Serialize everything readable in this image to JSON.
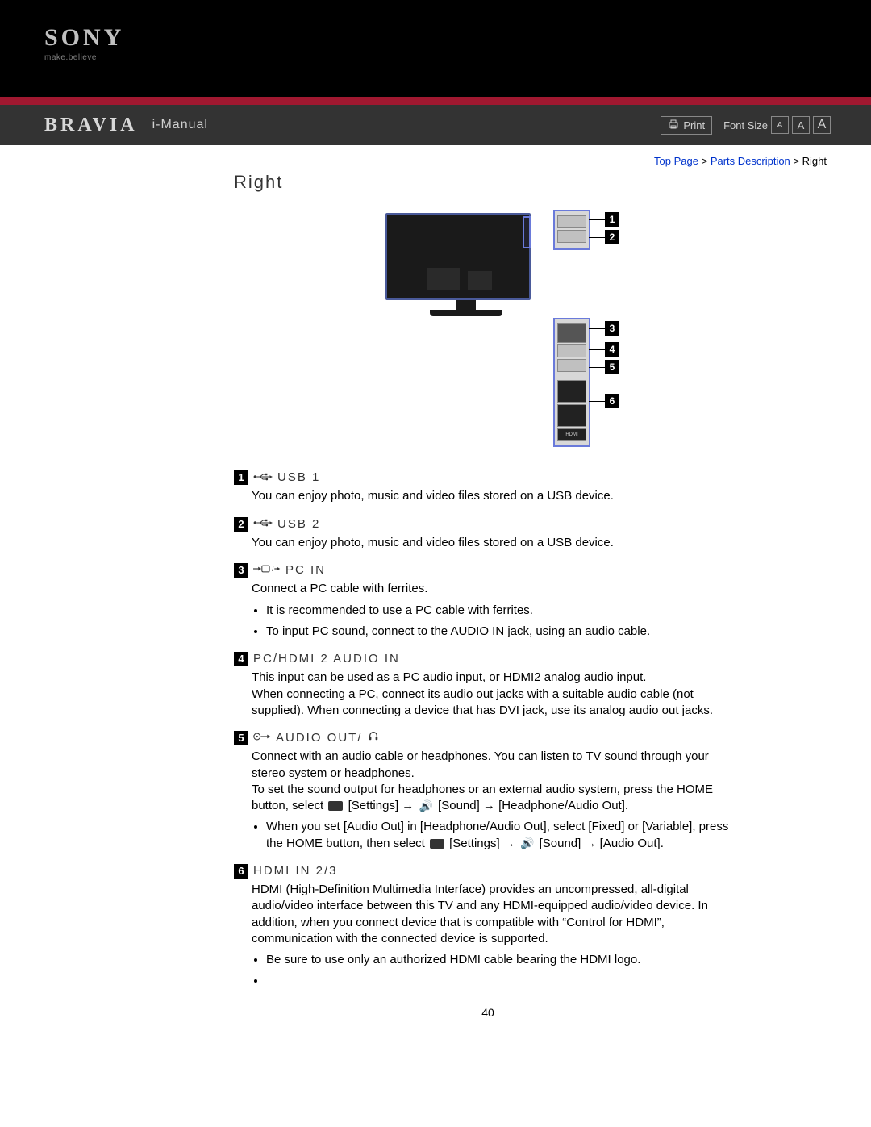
{
  "logo": {
    "brand": "SONY",
    "tagline": "make.believe"
  },
  "header": {
    "bravia": "BRAVIA",
    "imanual": "i-Manual",
    "print": "Print",
    "font_size_label": "Font Size",
    "a1": "A",
    "a2": "A",
    "a3": "A"
  },
  "breadcrumb": {
    "top": "Top Page",
    "mid": "Parts Description",
    "current": "Right",
    "sep": ">"
  },
  "title": "Right",
  "callouts": [
    "1",
    "2",
    "3",
    "4",
    "5",
    "6"
  ],
  "items": [
    {
      "num": "1",
      "icon": "usb",
      "title": "USB 1",
      "body": [
        "You can enjoy photo, music and video files stored on a USB device."
      ],
      "bullets": []
    },
    {
      "num": "2",
      "icon": "usb",
      "title": "USB 2",
      "body": [
        "You can enjoy photo, music and video files stored on a USB device."
      ],
      "bullets": []
    },
    {
      "num": "3",
      "icon": "pc",
      "title": "PC IN",
      "body": [
        "Connect a PC cable with ferrites."
      ],
      "bullets": [
        "It is recommended to use a PC cable with ferrites.",
        "To input PC sound, connect to the AUDIO IN jack, using an audio cable."
      ]
    },
    {
      "num": "4",
      "icon": "",
      "title": "PC/HDMI 2 AUDIO IN",
      "body": [
        "This input can be used as a PC audio input, or HDMI2 analog audio input.",
        "When connecting a PC, connect its audio out jacks with a suitable audio cable (not supplied). When connecting a device that has DVI jack, use its analog audio out jacks."
      ],
      "bullets": []
    },
    {
      "num": "5",
      "icon": "audioout",
      "title": "AUDIO OUT/",
      "title_suffix_icon": "headphone",
      "body_rich": true,
      "body": [
        "Connect with an audio cable or headphones. You can listen to TV sound through your stereo system or headphones."
      ],
      "body2_pre": "To set the sound output for headphones or an external audio system, press the HOME button, select ",
      "body2_settings": " [Settings] → ",
      "body2_sound": " [Sound] → [Headphone/Audio Out].",
      "bullets_rich": [
        {
          "pre": "When you set [Audio Out] in [Headphone/Audio Out], select [Fixed] or [Variable], press the HOME button, then select ",
          "mid1": " [Settings] → ",
          "mid2": " [Sound] → [Audio Out]."
        }
      ],
      "bullets": []
    },
    {
      "num": "6",
      "icon": "",
      "title": "HDMI IN 2/3",
      "body": [
        "HDMI (High-Definition Multimedia Interface) provides an uncompressed, all-digital audio/video interface between this TV and any HDMI-equipped audio/video device. In addition, when you connect device that is compatible with “Control for HDMI”, communication with the connected device is supported."
      ],
      "bullets": [
        "Be sure to use only an authorized HDMI cable bearing the HDMI logo.",
        ""
      ]
    }
  ],
  "page_number": "40"
}
